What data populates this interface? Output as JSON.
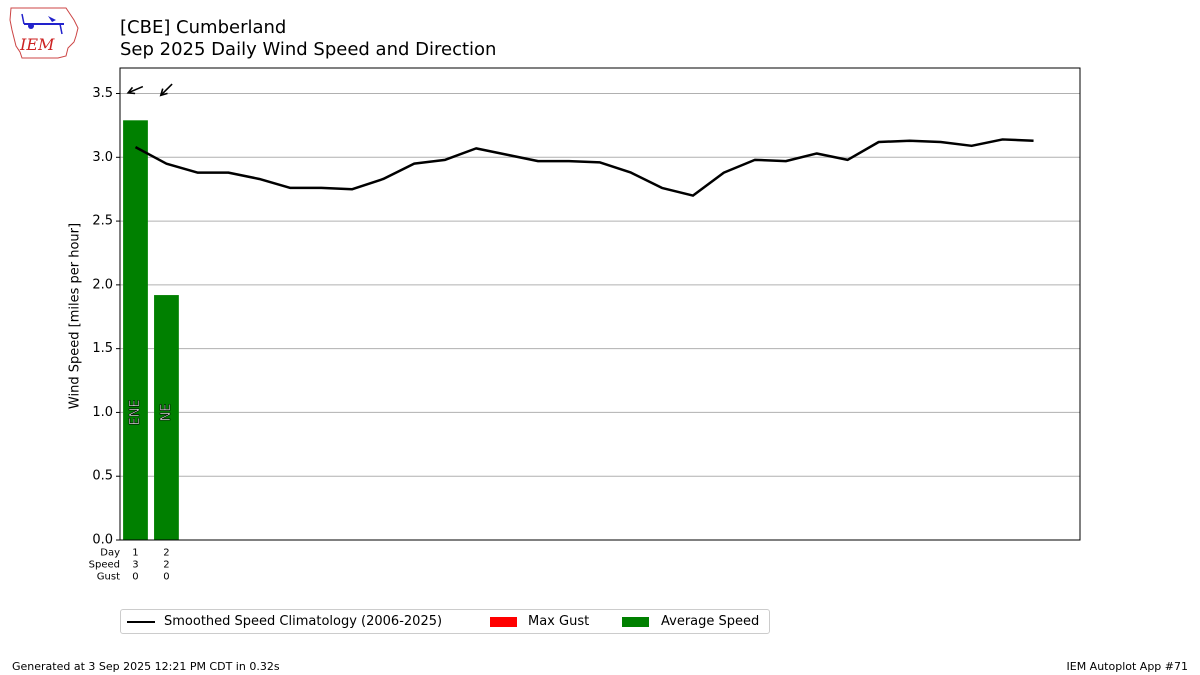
{
  "logo": {
    "text": "IEM"
  },
  "header": {
    "title_line1": "[CBE] Cumberland",
    "title_line2": "Sep 2025 Daily Wind Speed and Direction"
  },
  "footer": {
    "left": "Generated at 3 Sep 2025 12:21 PM CDT in 0.32s",
    "right": "IEM Autoplot App #71"
  },
  "legend": {
    "items": [
      {
        "label": "Smoothed Speed Climatology (2006-2025)",
        "color": "#000000",
        "kind": "line"
      },
      {
        "label": "Max Gust",
        "color": "#ff0000",
        "kind": "box"
      },
      {
        "label": "Average Speed",
        "color": "#008000",
        "kind": "box"
      }
    ]
  },
  "chart_data": {
    "type": "bar",
    "title": "[CBE] Cumberland\nSep 2025 Daily Wind Speed and Direction",
    "ylabel": "Wind Speed [miles per hour]",
    "xlabel": "",
    "ylim": [
      0,
      3.7
    ],
    "xlim": [
      0.5,
      31.5
    ],
    "yticks": [
      0.0,
      0.5,
      1.0,
      1.5,
      2.0,
      2.5,
      3.0,
      3.5
    ],
    "grid": "horizontal",
    "legend_placement": "below",
    "table_row_labels": [
      "Day",
      "Speed",
      "Gust"
    ],
    "days": [
      1,
      2
    ],
    "avg_speed_rounded": [
      3,
      2
    ],
    "max_gust": [
      0,
      0
    ],
    "series": [
      {
        "name": "Average Speed",
        "color": "#008000",
        "x": [
          1,
          2
        ],
        "values": [
          3.29,
          1.92
        ],
        "direction_labels": [
          "ENE",
          "NE"
        ],
        "direction_degrees": [
          67,
          45
        ]
      },
      {
        "name": "Smoothed Speed Climatology (2006-2025)",
        "color": "#000000",
        "x": [
          1,
          2,
          3,
          4,
          5,
          6,
          7,
          8,
          9,
          10,
          11,
          12,
          13,
          14,
          15,
          16,
          17,
          18,
          19,
          20,
          21,
          22,
          23,
          24,
          25,
          26,
          27,
          28,
          29,
          30
        ],
        "values": [
          3.08,
          2.95,
          2.88,
          2.88,
          2.83,
          2.76,
          2.76,
          2.75,
          2.83,
          2.95,
          2.98,
          3.07,
          3.02,
          2.97,
          2.97,
          2.96,
          2.88,
          2.76,
          2.7,
          2.88,
          2.98,
          2.97,
          3.03,
          2.98,
          3.12,
          3.13,
          3.12,
          3.09,
          3.14,
          3.13
        ]
      }
    ]
  }
}
